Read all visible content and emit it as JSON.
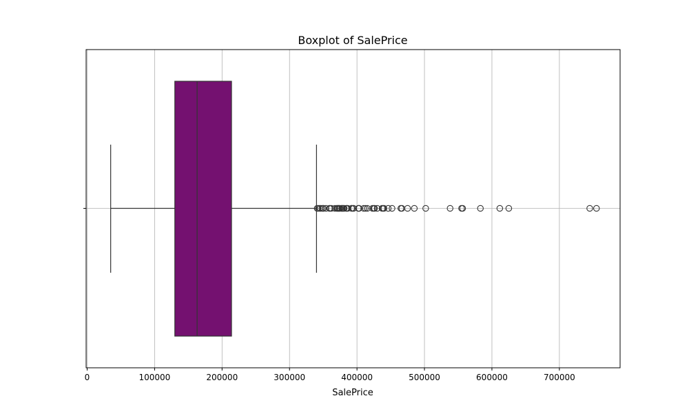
{
  "chart_data": {
    "type": "box",
    "orientation": "horizontal",
    "title": "Boxplot of SalePrice",
    "xlabel": "SalePrice",
    "ylabel": "",
    "xlim": [
      -1500,
      790000
    ],
    "xticks": [
      0,
      100000,
      200000,
      300000,
      400000,
      500000,
      600000,
      700000
    ],
    "xtick_labels": [
      "0",
      "100000",
      "200000",
      "300000",
      "400000",
      "500000",
      "600000",
      "700000"
    ],
    "grid": true,
    "box_color": "#741170",
    "line_color": "#333333",
    "grid_color": "#b0b0b0",
    "stats": {
      "whisker_low": 34900,
      "q1": 129975,
      "median": 163000,
      "q3": 214000,
      "whisker_high": 340000
    },
    "outliers": [
      341000,
      342643,
      345000,
      345474,
      348000,
      350000,
      350000,
      354000,
      359100,
      360000,
      361919,
      367294,
      369900,
      370878,
      372402,
      372500,
      374000,
      375000,
      377426,
      377500,
      378500,
      380000,
      381000,
      383970,
      385000,
      386250,
      392000,
      392500,
      394432,
      395000,
      402000,
      402861,
      403000,
      410000,
      412500,
      415298,
      423000,
      424870,
      426000,
      430000,
      437154,
      438780,
      440000,
      446261,
      451950,
      465000,
      466500,
      475000,
      485000,
      501837,
      538000,
      555000,
      556581,
      582933,
      611657,
      625000,
      745000,
      755000
    ]
  }
}
